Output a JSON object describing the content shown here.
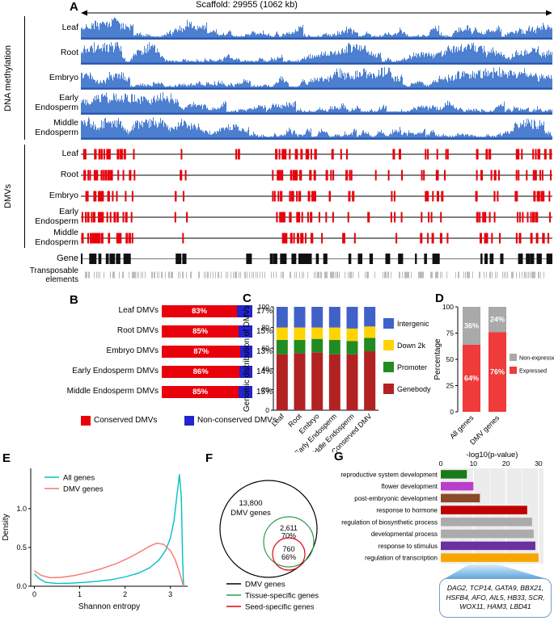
{
  "panels": {
    "A": {
      "letter": "A",
      "title": "Scaffold: 29955 (1062 kb)",
      "group_methylation": "DNA methylation",
      "group_dmvs": "DMVs",
      "tissues": [
        "Leaf",
        "Root",
        "Embryo",
        "Early Endosperm",
        "Middle Endosperm"
      ],
      "gene_track": "Gene",
      "te_track": "Transposable elements",
      "colors": {
        "methylation": "#4d7fd0",
        "methylation_base": "#2d5bb0",
        "dmv": "#e8000b",
        "gene": "#111111",
        "te": "#bbbbbb"
      }
    },
    "B": {
      "letter": "B"
    },
    "C": {
      "letter": "C"
    },
    "D": {
      "letter": "D"
    },
    "E": {
      "letter": "E"
    },
    "F": {
      "letter": "F"
    },
    "G": {
      "letter": "G"
    }
  },
  "chart_data": [
    {
      "id": "B",
      "type": "bar",
      "subtype": "stacked-horizontal-pct",
      "categories": [
        "Leaf DMVs",
        "Root DMVs",
        "Embryo DMVs",
        "Early Endosperm DMVs",
        "Middle Endosperm DMVs"
      ],
      "series": [
        {
          "name": "Conserved DMVs",
          "color": "#e8000b",
          "values": [
            83,
            85,
            87,
            86,
            85
          ]
        },
        {
          "name": "Non-conserved DMVs",
          "color": "#2424cc",
          "values": [
            17,
            15,
            13,
            14,
            15
          ]
        }
      ],
      "inside_labels": [
        "83%",
        "85%",
        "87%",
        "86%",
        "85%"
      ],
      "outside_labels": [
        "17%",
        "15%",
        "13%",
        "14%",
        "15%"
      ],
      "legend": [
        {
          "label": "Conserved DMVs",
          "color": "#e8000b"
        },
        {
          "label": "Non-conserved DMVs",
          "color": "#2424cc"
        }
      ]
    },
    {
      "id": "C",
      "type": "bar",
      "subtype": "stacked-vertical",
      "ylabel": "Genomic distribution of DMVs",
      "yticks": [
        0,
        20,
        40,
        60,
        80,
        100
      ],
      "ylim": [
        0,
        100
      ],
      "categories": [
        "Leaf",
        "Root",
        "Embryo",
        "Early Endosperm",
        "Middle Endosperm",
        "Conserved DMV"
      ],
      "series": [
        {
          "name": "Genebody",
          "color": "#b22222",
          "values": [
            54,
            55,
            56,
            54,
            54,
            57
          ]
        },
        {
          "name": "Promoter",
          "color": "#228b22",
          "values": [
            14,
            13,
            13,
            14,
            13,
            13
          ]
        },
        {
          "name": "Down 2k",
          "color": "#ffd400",
          "values": [
            12,
            12,
            11,
            12,
            12,
            11
          ]
        },
        {
          "name": "Intergenic",
          "color": "#4062c8",
          "values": [
            20,
            20,
            20,
            20,
            21,
            19
          ]
        }
      ],
      "legend": [
        {
          "label": "Intergenic",
          "color": "#4062c8"
        },
        {
          "label": "Down 2k",
          "color": "#ffd400"
        },
        {
          "label": "Promoter",
          "color": "#228b22"
        },
        {
          "label": "Genebody",
          "color": "#b22222"
        }
      ]
    },
    {
      "id": "D",
      "type": "bar",
      "subtype": "stacked-vertical",
      "ylabel": "Percentage",
      "yticks": [
        0,
        25,
        50,
        75,
        100
      ],
      "ylim": [
        0,
        100
      ],
      "categories": [
        "All genes",
        "DMV genes"
      ],
      "series": [
        {
          "name": "Expressed",
          "color": "#f03b3b",
          "values": [
            64,
            76
          ]
        },
        {
          "name": "Non-expressed",
          "color": "#a9a9a9",
          "values": [
            36,
            24
          ]
        }
      ],
      "inside_labels": [
        [
          "64%",
          "36%"
        ],
        [
          "76%",
          "24%"
        ]
      ],
      "legend": [
        {
          "label": "Non-expressed",
          "color": "#a9a9a9"
        },
        {
          "label": "Expressed",
          "color": "#f03b3b"
        }
      ]
    },
    {
      "id": "E",
      "type": "line",
      "subtype": "density",
      "xlabel": "Shannon entropy",
      "ylabel": "Density",
      "xticks": [
        0,
        1,
        2,
        3
      ],
      "yticks": [
        "0.0",
        "0.5",
        "1.0"
      ],
      "xlim": [
        -0.08,
        3.38
      ],
      "ylim": [
        0,
        1.52
      ],
      "series": [
        {
          "name": "All genes",
          "color": "#00bfc4",
          "points": [
            [
              0,
              0.16
            ],
            [
              0.1,
              0.1
            ],
            [
              0.25,
              0.05
            ],
            [
              0.5,
              0.035
            ],
            [
              0.8,
              0.04
            ],
            [
              1.1,
              0.05
            ],
            [
              1.4,
              0.065
            ],
            [
              1.7,
              0.085
            ],
            [
              2,
              0.12
            ],
            [
              2.3,
              0.17
            ],
            [
              2.55,
              0.24
            ],
            [
              2.75,
              0.34
            ],
            [
              2.9,
              0.47
            ],
            [
              3,
              0.62
            ],
            [
              3.08,
              0.85
            ],
            [
              3.15,
              1.2
            ],
            [
              3.2,
              1.44
            ],
            [
              3.24,
              1.15
            ],
            [
              3.27,
              0.35
            ],
            [
              3.29,
              0
            ]
          ]
        },
        {
          "name": "DMV genes",
          "color": "#f8766d",
          "points": [
            [
              0,
              0.2
            ],
            [
              0.15,
              0.14
            ],
            [
              0.35,
              0.11
            ],
            [
              0.6,
              0.115
            ],
            [
              0.9,
              0.14
            ],
            [
              1.2,
              0.18
            ],
            [
              1.5,
              0.23
            ],
            [
              1.8,
              0.29
            ],
            [
              2.1,
              0.37
            ],
            [
              2.35,
              0.45
            ],
            [
              2.55,
              0.52
            ],
            [
              2.7,
              0.555
            ],
            [
              2.85,
              0.54
            ],
            [
              3,
              0.46
            ],
            [
              3.1,
              0.35
            ],
            [
              3.2,
              0.18
            ],
            [
              3.27,
              0.04
            ],
            [
              3.29,
              0
            ]
          ]
        }
      ]
    },
    {
      "id": "F",
      "type": "venn",
      "sets": [
        {
          "name": "DMV genes",
          "color": "#000000",
          "value": "13,800"
        },
        {
          "name": "Tissue-specific genes",
          "color": "#2e9e4f",
          "value": "2,611",
          "pct": "70%"
        },
        {
          "name": "Seed-specific genes",
          "color": "#e8000b",
          "value": "760",
          "pct": "66%"
        }
      ],
      "legend": [
        {
          "label": "DMV genes",
          "color": "#000000"
        },
        {
          "label": "Tissue-specific genes",
          "color": "#2e9e4f"
        },
        {
          "label": "Seed-specific genes",
          "color": "#e8000b"
        }
      ]
    },
    {
      "id": "G",
      "type": "bar",
      "subtype": "horizontal",
      "axis_title": "-log10(p-value)",
      "xticks": [
        0,
        10,
        20,
        30
      ],
      "xlim": [
        0,
        31.5
      ],
      "categories": [
        "reproductive system development",
        "flower development",
        "post-embryonic development",
        "response to hormone",
        "regulation of biosynthetic process",
        "developmental process",
        "response to stimulus",
        "regulation of transcription"
      ],
      "values": [
        8,
        10,
        12,
        26.5,
        28,
        28.5,
        29,
        30
      ],
      "colors": [
        "#1a7a1a",
        "#bb3dcc",
        "#8a4a2a",
        "#c00000",
        "#ababab",
        "#ababab",
        "#6a329f",
        "#f7a600"
      ],
      "callout_genes": "DAG2, TCP14, GATA9, BBX21, HSFB4, AFO, AIL5, HB33, SCR, WOX11, HAM3, LBD41"
    }
  ]
}
